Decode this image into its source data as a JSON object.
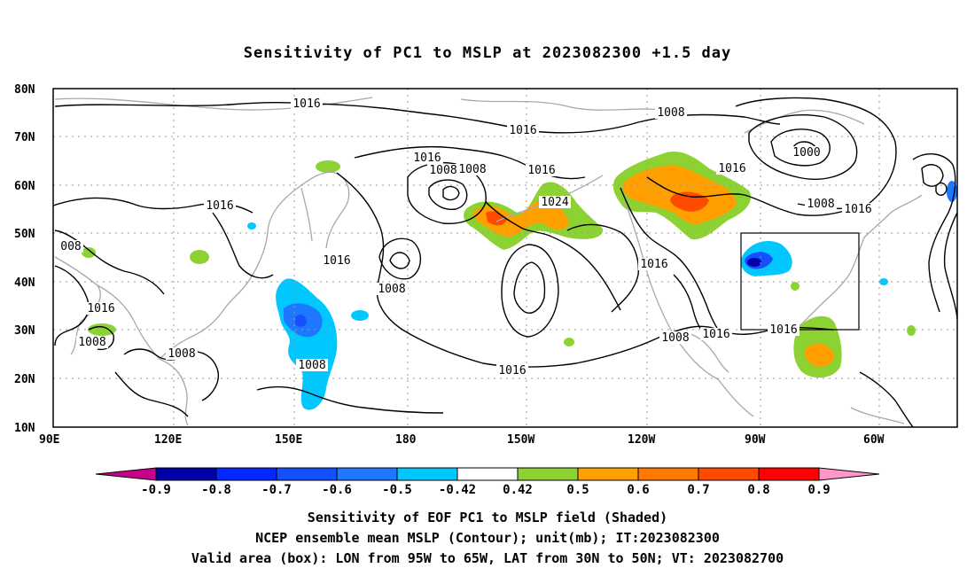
{
  "title": "Sensitivity of PC1 to MSLP at 2023082300 +1.5 day",
  "map": {
    "lat_labels": [
      "80N",
      "70N",
      "60N",
      "50N",
      "40N",
      "30N",
      "20N",
      "10N"
    ],
    "lon_labels": [
      "90E",
      "120E",
      "150E",
      "180",
      "150W",
      "120W",
      "90W",
      "60W"
    ],
    "contour_labels": [
      "1016",
      "1008",
      "1016",
      "1016",
      "1008",
      "1016",
      "1024",
      "1016",
      "1000",
      "1008",
      "1016",
      "1016",
      "1008",
      "1016",
      "1016",
      "1008",
      "1008",
      "1008",
      "1008",
      "1016",
      "1016",
      "1016",
      "1016",
      "008",
      "1008"
    ],
    "valid_box": {
      "lon_from": "95W",
      "lon_to": "65W",
      "lat_from": "30N",
      "lat_to": "50N"
    }
  },
  "colorbar": {
    "labels": [
      "-0.9",
      "-0.8",
      "-0.7",
      "-0.6",
      "-0.5",
      "-0.42",
      "0.42",
      "0.5",
      "0.6",
      "0.7",
      "0.8",
      "0.9"
    ],
    "colors": [
      "#0000a8",
      "#0028ff",
      "#1450ff",
      "#1e78ff",
      "#00c8ff",
      "#ffffff",
      "#8cd232",
      "#ffa000",
      "#ff7800",
      "#ff4b00",
      "#ff0000"
    ],
    "under_color": "#c8008c",
    "over_color": "#ff96c8"
  },
  "captions": {
    "line1": "Sensitivity of EOF PC1 to MSLP field (Shaded)",
    "line2": "NCEP ensemble mean MSLP (Contour); unit(mb); IT:2023082300",
    "line3": "Valid area (box): LON from 95W to 65W, LAT from 30N to 50N; VT: 2023082700"
  }
}
